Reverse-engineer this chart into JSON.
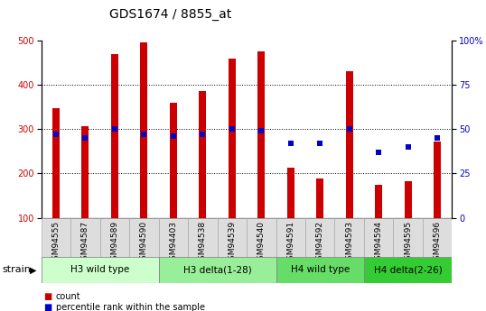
{
  "title": "GDS1674 / 8855_at",
  "samples": [
    "GSM94555",
    "GSM94587",
    "GSM94589",
    "GSM94590",
    "GSM94403",
    "GSM94538",
    "GSM94539",
    "GSM94540",
    "GSM94591",
    "GSM94592",
    "GSM94593",
    "GSM94594",
    "GSM94595",
    "GSM94596"
  ],
  "counts": [
    348,
    307,
    470,
    495,
    360,
    385,
    460,
    475,
    212,
    188,
    430,
    175,
    182,
    272
  ],
  "percentiles": [
    47,
    45,
    50,
    47,
    46,
    47,
    50,
    49,
    42,
    42,
    50,
    37,
    40,
    45
  ],
  "groups": [
    {
      "label": "H3 wild type",
      "start": 0,
      "end": 4,
      "color": "#ccffcc"
    },
    {
      "label": "H3 delta(1-28)",
      "start": 4,
      "end": 8,
      "color": "#99ee99"
    },
    {
      "label": "H4 wild type",
      "start": 8,
      "end": 11,
      "color": "#66dd66"
    },
    {
      "label": "H4 delta(2-26)",
      "start": 11,
      "end": 14,
      "color": "#33cc33"
    }
  ],
  "bar_color": "#cc0000",
  "dot_color": "#0000cc",
  "ylim_left": [
    100,
    500
  ],
  "ylim_right": [
    0,
    100
  ],
  "yticks_left": [
    100,
    200,
    300,
    400,
    500
  ],
  "yticks_right": [
    0,
    25,
    50,
    75,
    100
  ],
  "yticklabels_right": [
    "0",
    "25",
    "50",
    "75",
    "100%"
  ],
  "background_color": "#ffffff",
  "title_fontsize": 10,
  "tick_fontsize": 7,
  "label_fontsize": 8,
  "xtick_fontsize": 6.5,
  "strain_label": "strain",
  "legend_count": "count",
  "legend_percentile": "percentile rank within the sample",
  "bar_width": 0.25,
  "xtick_label_color": "#555555",
  "group_text_fontsize": 7.5
}
